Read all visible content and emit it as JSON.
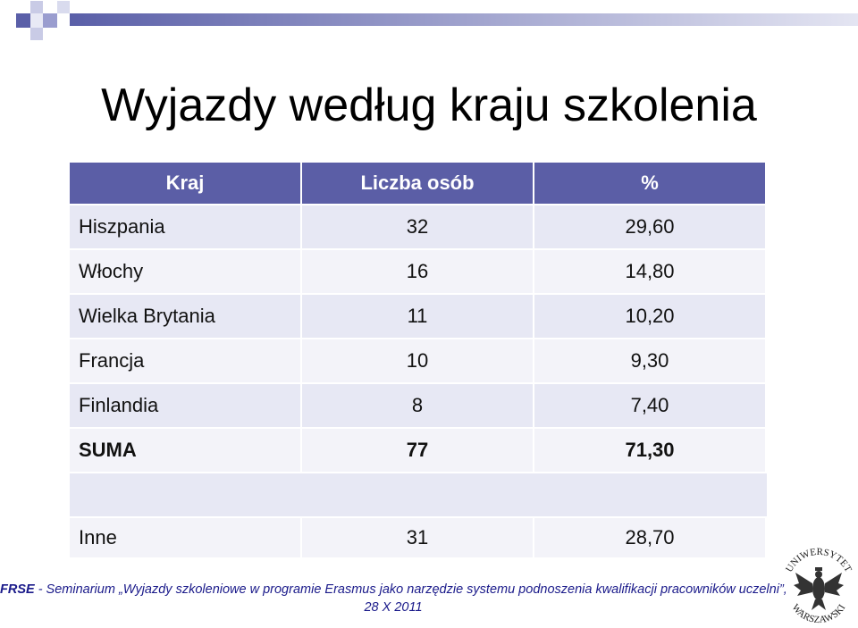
{
  "title": "Wyjazdy według kraju szkolenia",
  "table": {
    "header": [
      "Kraj",
      "Liczba osób",
      "%"
    ],
    "rows": [
      [
        "Hiszpania",
        "32",
        "29,60"
      ],
      [
        "Włochy",
        "16",
        "14,80"
      ],
      [
        "Wielka Brytania",
        "11",
        "10,20"
      ],
      [
        "Francja",
        "10",
        "9,30"
      ],
      [
        "Finlandia",
        "8",
        "7,40"
      ],
      [
        "SUMA",
        "77",
        "71,30"
      ]
    ],
    "other": [
      "Inne",
      "31",
      "28,70"
    ]
  },
  "footer": {
    "org": "FRSE",
    "text": "- Seminarium „Wyjazdy szkoleniowe w programie Erasmus jako narzędzie systemu podnoszenia kwalifikacji pracowników uczelni”,",
    "date": "28 X 2011"
  },
  "logo": {
    "top": "UNIWERSYTET",
    "bottom": "WARSZAWSKI"
  }
}
